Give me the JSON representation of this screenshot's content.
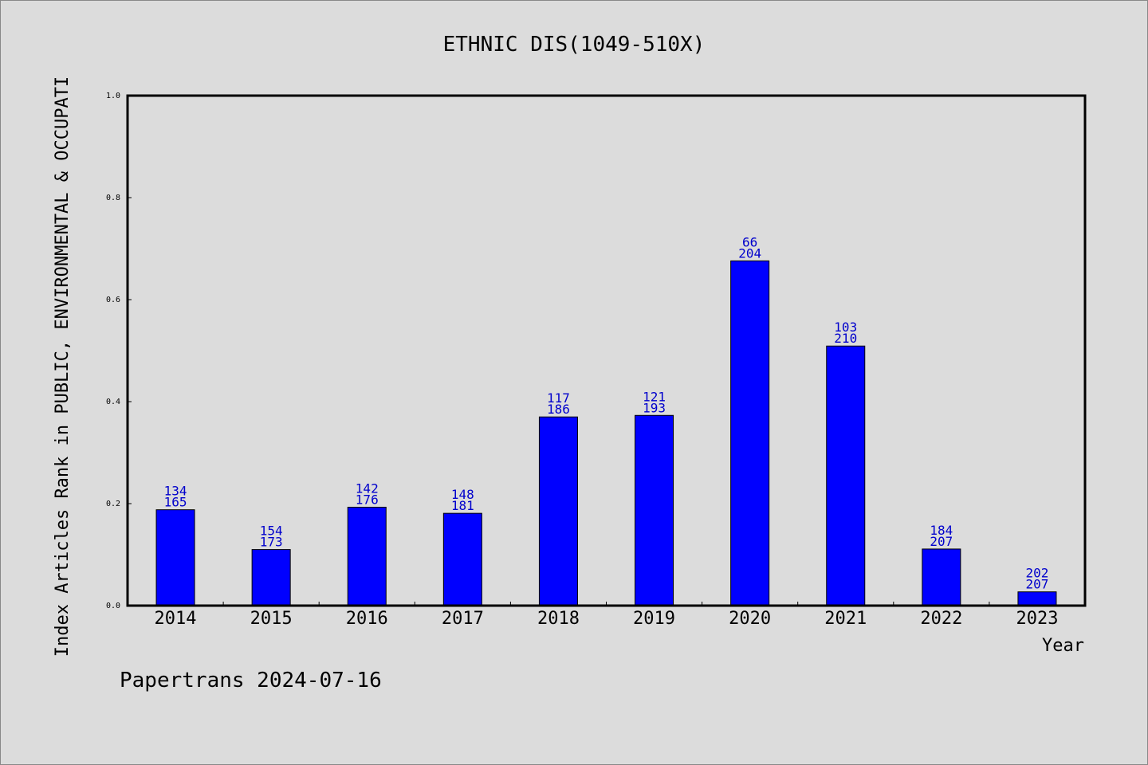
{
  "chart_data": {
    "type": "bar",
    "title": "ETHNIC DIS(1049-510X)",
    "xlabel": "Year",
    "ylabel": "Index Articles Rank in PUBLIC, ENVIRONMENTAL & OCCUPATI",
    "ylim": [
      0,
      1.0
    ],
    "yticks": [
      "0.0",
      "0.2",
      "0.4",
      "0.6",
      "0.8",
      "1.0"
    ],
    "categories": [
      "2014",
      "2015",
      "2016",
      "2017",
      "2018",
      "2019",
      "2020",
      "2021",
      "2022",
      "2023"
    ],
    "values": [
      0.188,
      0.11,
      0.193,
      0.181,
      0.37,
      0.373,
      0.676,
      0.509,
      0.111,
      0.027
    ],
    "labels_top": [
      "134",
      "154",
      "142",
      "148",
      "117",
      "121",
      "66",
      "103",
      "184",
      "202"
    ],
    "labels_bottom": [
      "165",
      "173",
      "176",
      "181",
      "186",
      "193",
      "204",
      "210",
      "207",
      "207"
    ],
    "bar_color": "#0000ff",
    "label_color": "#0000cc",
    "grid": false
  },
  "footer": "Papertrans 2024-07-16"
}
